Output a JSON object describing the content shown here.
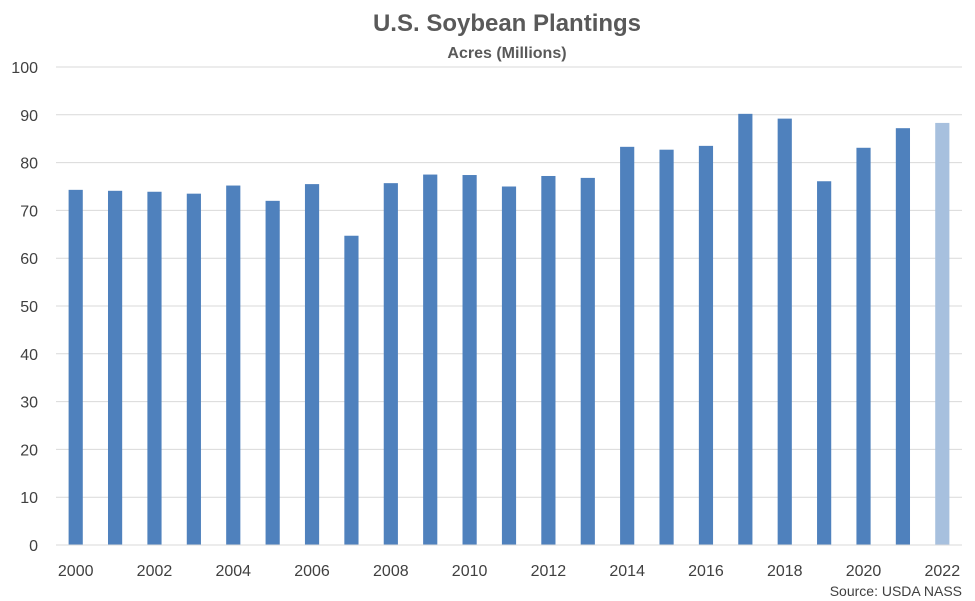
{
  "chart_data": {
    "type": "bar",
    "title": "U.S. Soybean Plantings",
    "subtitle": "Acres (Millions)",
    "xlabel": "",
    "ylabel": "",
    "ylim": [
      0,
      100
    ],
    "yticks": [
      0,
      10,
      20,
      30,
      40,
      50,
      60,
      70,
      80,
      90,
      100
    ],
    "xtick_labels": [
      "2000",
      "2002",
      "2004",
      "2006",
      "2008",
      "2010",
      "2012",
      "2014",
      "2016",
      "2018",
      "2020",
      "2022"
    ],
    "categories": [
      2000,
      2001,
      2002,
      2003,
      2004,
      2005,
      2006,
      2007,
      2008,
      2009,
      2010,
      2011,
      2012,
      2013,
      2014,
      2015,
      2016,
      2017,
      2018,
      2019,
      2020,
      2021,
      2022
    ],
    "values": [
      74.3,
      74.1,
      73.9,
      73.5,
      75.2,
      72.0,
      75.5,
      64.7,
      75.7,
      77.5,
      77.4,
      75.0,
      77.2,
      76.8,
      83.3,
      82.7,
      83.5,
      90.2,
      89.2,
      76.1,
      83.1,
      87.2,
      88.3
    ],
    "colors": {
      "bar": "#4f81bd",
      "highlight_bar": "#a7c0de",
      "grid": "#d9d9d9"
    },
    "highlight_categories": [
      2022
    ],
    "grid": true,
    "legend": "none",
    "source": "Source: USDA NASS"
  }
}
